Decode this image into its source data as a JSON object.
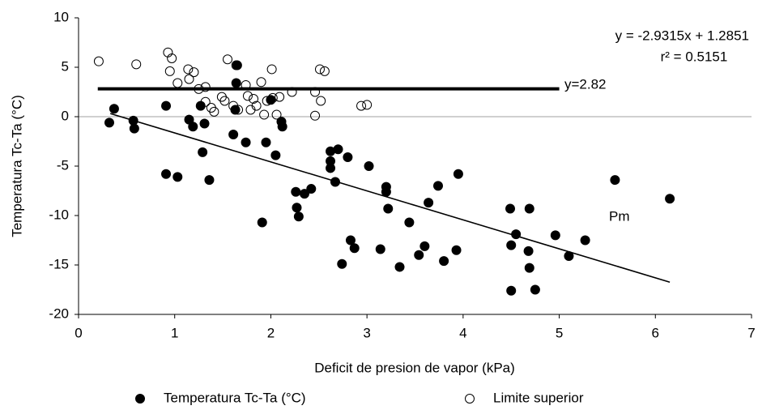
{
  "chart_data": {
    "type": "scatter",
    "xlabel": "Deficit de presion de vapor (kPa)",
    "ylabel": "Temperatura Tc-Ta (°C)",
    "xlim": [
      0,
      7
    ],
    "ylim": [
      -20,
      10
    ],
    "xticks": [
      0,
      1,
      2,
      3,
      4,
      5,
      6,
      7
    ],
    "yticks": [
      -20,
      -15,
      -10,
      -5,
      0,
      5,
      10
    ],
    "zero_line": true,
    "series": [
      {
        "name": "Temperatura Tc-Ta (°C)",
        "color": "#000000",
        "filled": true,
        "x": [
          0.32,
          0.37,
          0.57,
          0.58,
          0.91,
          0.91,
          1.03,
          1.15,
          1.19,
          1.27,
          1.29,
          1.31,
          1.36,
          1.61,
          1.63,
          1.65,
          1.64,
          1.74,
          1.91,
          1.95,
          2.0,
          2.05,
          2.11,
          2.12,
          2.26,
          2.27,
          2.29,
          2.35,
          2.42,
          2.62,
          2.62,
          2.62,
          2.7,
          2.67,
          2.74,
          2.8,
          2.83,
          2.87,
          3.02,
          3.14,
          3.2,
          3.2,
          3.22,
          3.34,
          3.44,
          3.54,
          3.6,
          3.64,
          3.74,
          3.8,
          3.93,
          3.95,
          4.49,
          4.5,
          4.5,
          4.55,
          4.68,
          4.69,
          4.69,
          4.75,
          4.96,
          5.1,
          5.27,
          5.58,
          6.15
        ],
        "y": [
          -0.6,
          0.8,
          -0.4,
          -1.2,
          1.1,
          -5.8,
          -6.1,
          -0.3,
          -1.0,
          1.1,
          -3.6,
          -0.7,
          -6.4,
          -1.8,
          0.7,
          5.2,
          3.4,
          -2.6,
          -10.7,
          -2.6,
          1.7,
          -3.9,
          -0.5,
          -1.0,
          -7.6,
          -9.2,
          -10.1,
          -7.8,
          -7.3,
          -3.5,
          -4.5,
          -5.2,
          -3.3,
          -6.6,
          -14.9,
          -4.1,
          -12.5,
          -13.3,
          -5.0,
          -13.4,
          -7.1,
          -7.6,
          -9.3,
          -15.2,
          -10.7,
          -14.0,
          -13.1,
          -8.7,
          -7.0,
          -14.6,
          -13.5,
          -5.8,
          -9.3,
          -13.0,
          -17.6,
          -11.9,
          -13.6,
          -9.3,
          -15.3,
          -17.5,
          -12.0,
          -14.1,
          -12.5,
          -6.4,
          -8.3
        ]
      },
      {
        "name": "Limite superior",
        "color": "#000000",
        "filled": false,
        "x": [
          0.21,
          0.6,
          0.93,
          0.95,
          0.97,
          1.03,
          1.14,
          1.15,
          1.2,
          1.25,
          1.32,
          1.32,
          1.38,
          1.41,
          1.49,
          1.52,
          1.55,
          1.61,
          1.64,
          1.66,
          1.74,
          1.76,
          1.79,
          1.82,
          1.85,
          1.9,
          1.93,
          1.96,
          2.01,
          2.02,
          2.06,
          2.09,
          2.22,
          2.46,
          2.46,
          2.51,
          2.52,
          2.56,
          2.94,
          3.0
        ],
        "y": [
          5.6,
          5.3,
          6.5,
          4.6,
          5.9,
          3.4,
          4.8,
          3.8,
          4.5,
          2.8,
          3.0,
          1.5,
          0.9,
          0.5,
          2.0,
          1.6,
          5.8,
          1.1,
          5.2,
          0.7,
          3.2,
          2.1,
          0.7,
          1.8,
          1.1,
          3.5,
          0.2,
          1.6,
          4.8,
          1.9,
          0.2,
          2.0,
          2.5,
          2.5,
          0.1,
          4.8,
          1.6,
          4.6,
          1.1,
          1.2
        ]
      }
    ],
    "lines": [
      {
        "x": [
          0.33,
          6.15
        ],
        "y": [
          0.32,
          -16.74
        ]
      },
      {
        "x": [
          0.2,
          5.0
        ],
        "y": [
          2.82,
          2.82
        ]
      }
    ],
    "annotations": [
      "y = -2.9315x + 1.2851",
      "r² = 0.5151",
      "y=2.82",
      "Pm"
    ]
  }
}
